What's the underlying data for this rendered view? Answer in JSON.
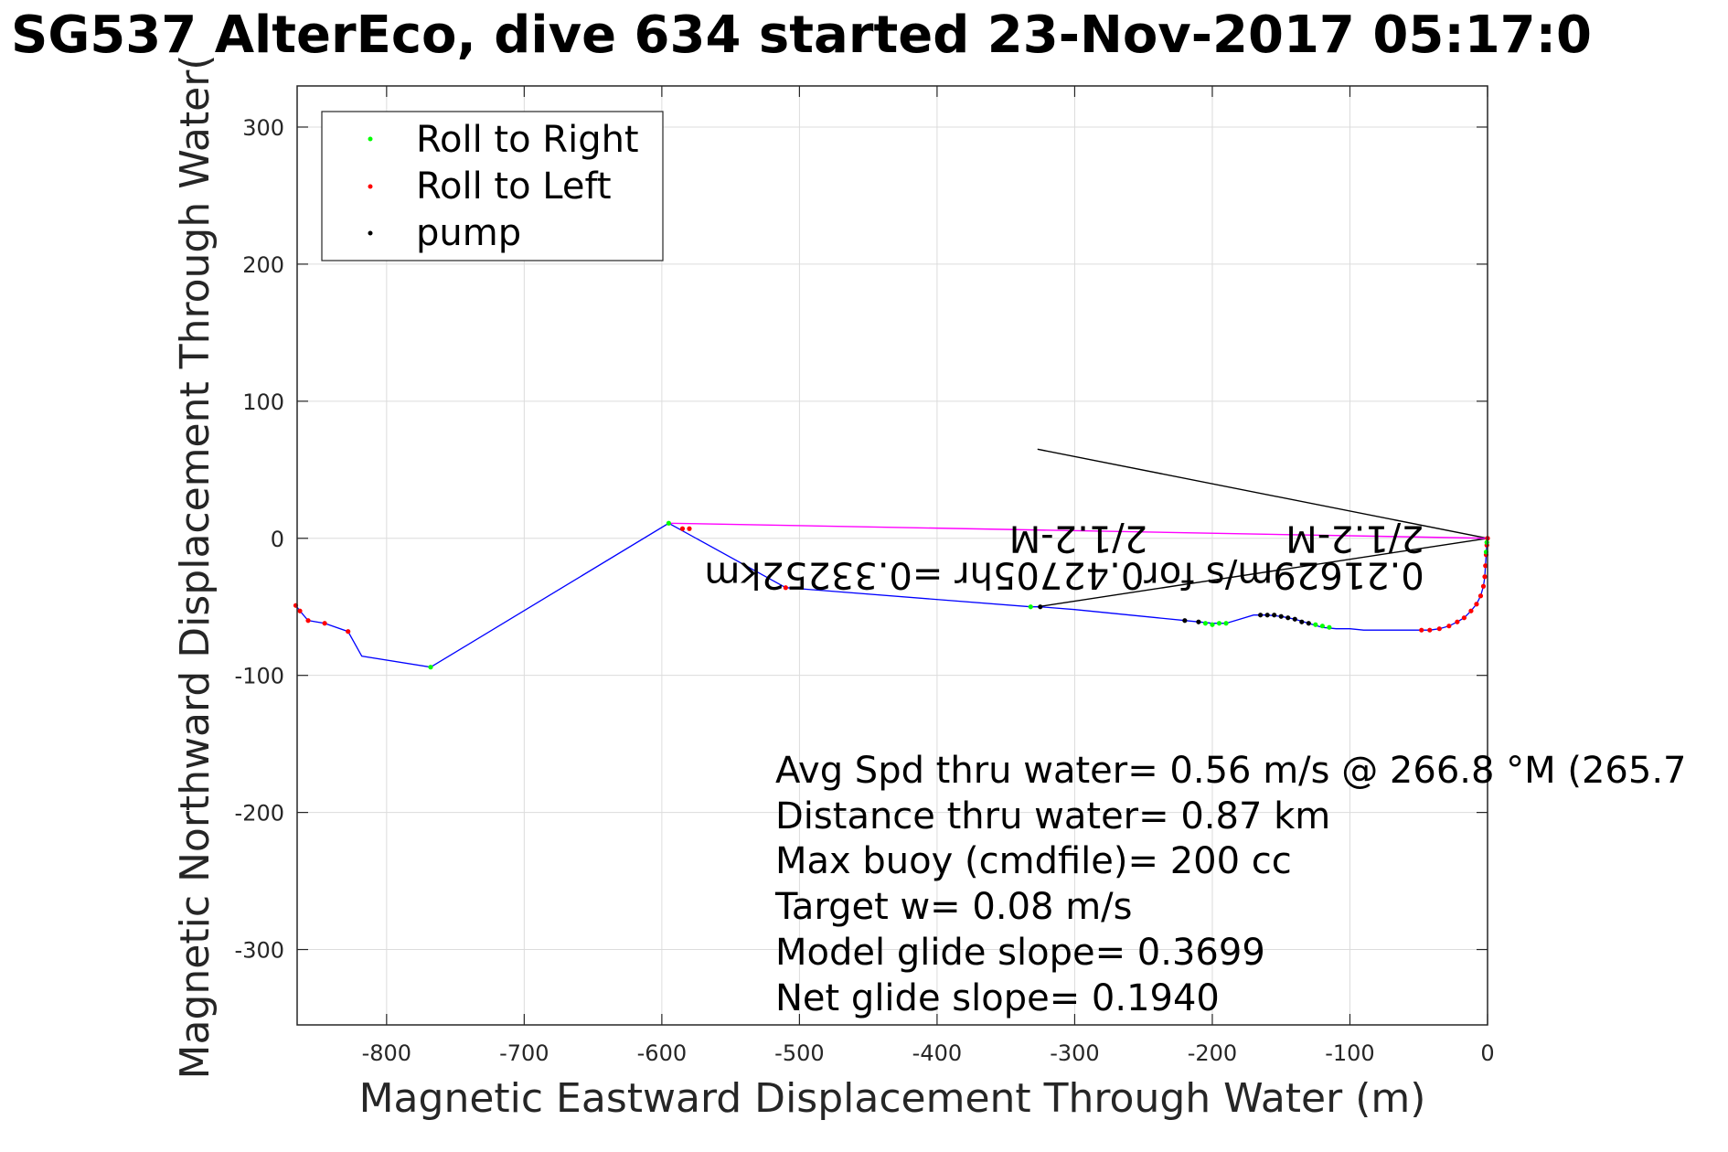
{
  "chart_data": {
    "type": "line",
    "title": "SG537 AlterEco, dive 634 started 23-Nov-2017 05:17:0",
    "xlabel": "Magnetic Eastward Displacement Through Water (m)",
    "ylabel": "Magnetic Northward Displacement Through Water(",
    "xlim": [
      -865,
      0
    ],
    "ylim": [
      -355,
      330
    ],
    "xticks": [
      -800,
      -700,
      -600,
      -500,
      -400,
      -300,
      -200,
      -100,
      0
    ],
    "xtick_labels": [
      "-800",
      "-700",
      "-600",
      "-500",
      "-400",
      "-300",
      "-200",
      "-100",
      "0"
    ],
    "yticks": [
      300,
      200,
      100,
      0,
      -100,
      -200,
      -300
    ],
    "ytick_labels": [
      "300",
      "200",
      "100",
      "0",
      "-100",
      "-200",
      "-300"
    ],
    "grid": true,
    "legend_position": "top-left",
    "legend": [
      {
        "label": "Roll to Right",
        "color": "#00ff00"
      },
      {
        "label": "Roll to Left",
        "color": "#ff0000"
      },
      {
        "label": "pump",
        "color": "#000000"
      }
    ],
    "track": {
      "color": "#0000ff",
      "points": [
        [
          0,
          0
        ],
        [
          -0.5,
          -5
        ],
        [
          -1,
          -12
        ],
        [
          -1.5,
          -20
        ],
        [
          -2,
          -28
        ],
        [
          -3,
          -35
        ],
        [
          -5,
          -42
        ],
        [
          -8,
          -48
        ],
        [
          -12,
          -53
        ],
        [
          -17,
          -58
        ],
        [
          -22,
          -61
        ],
        [
          -28,
          -64
        ],
        [
          -35,
          -66
        ],
        [
          -42,
          -67
        ],
        [
          -48,
          -67
        ],
        [
          -60,
          -67
        ],
        [
          -75,
          -67
        ],
        [
          -90,
          -67
        ],
        [
          -100,
          -66
        ],
        [
          -110,
          -66
        ],
        [
          -120,
          -65
        ],
        [
          -130,
          -62
        ],
        [
          -140,
          -59
        ],
        [
          -150,
          -57
        ],
        [
          -160,
          -56
        ],
        [
          -170,
          -56
        ],
        [
          -180,
          -59
        ],
        [
          -190,
          -62
        ],
        [
          -200,
          -62
        ],
        [
          -210,
          -61
        ],
        [
          -220,
          -60
        ],
        [
          -240,
          -58
        ],
        [
          -260,
          -56
        ],
        [
          -280,
          -54
        ],
        [
          -300,
          -52
        ],
        [
          -325,
          -50
        ],
        [
          -332,
          -50
        ],
        [
          -510,
          -36
        ],
        [
          -595,
          11
        ],
        [
          -768,
          -94
        ],
        [
          -818,
          -86
        ],
        [
          -828,
          -68
        ],
        [
          -845,
          -62
        ],
        [
          -857,
          -60
        ],
        [
          -863,
          -53
        ],
        [
          -866,
          -49
        ]
      ]
    },
    "roll_right_points": [
      [
        -0.5,
        -3
      ],
      [
        -1,
        -10
      ],
      [
        -195,
        -62
      ],
      [
        -200,
        -63
      ],
      [
        -205,
        -62
      ],
      [
        -190,
        -62
      ],
      [
        -120,
        -64
      ],
      [
        -125,
        -63
      ],
      [
        -115,
        -65
      ],
      [
        -332,
        -50
      ],
      [
        -595,
        11
      ],
      [
        -768,
        -94
      ]
    ],
    "roll_left_points": [
      [
        0,
        0
      ],
      [
        -0.5,
        -5
      ],
      [
        -1,
        -12
      ],
      [
        -1.5,
        -20
      ],
      [
        -2,
        -28
      ],
      [
        -3,
        -35
      ],
      [
        -5,
        -42
      ],
      [
        -8,
        -48
      ],
      [
        -12,
        -53
      ],
      [
        -17,
        -58
      ],
      [
        -22,
        -61
      ],
      [
        -28,
        -64
      ],
      [
        -35,
        -66
      ],
      [
        -42,
        -67
      ],
      [
        -48,
        -67
      ],
      [
        -510,
        -36
      ],
      [
        -580,
        7
      ],
      [
        -585,
        7
      ],
      [
        -828,
        -68
      ],
      [
        -845,
        -62
      ],
      [
        -857,
        -60
      ],
      [
        -863,
        -53
      ],
      [
        -866,
        -49
      ]
    ],
    "pump_points": [
      [
        -130,
        -62
      ],
      [
        -135,
        -61
      ],
      [
        -140,
        -59
      ],
      [
        -145,
        -58
      ],
      [
        -150,
        -57
      ],
      [
        -155,
        -56
      ],
      [
        -160,
        -56
      ],
      [
        -165,
        -56
      ],
      [
        -210,
        -61
      ],
      [
        -220,
        -60
      ],
      [
        -325,
        -50
      ]
    ],
    "heading_lines": [
      {
        "from": [
          0,
          0
        ],
        "to": [
          -327,
          65
        ],
        "color": "#000000"
      },
      {
        "from": [
          0,
          0
        ],
        "to": [
          -327,
          -50
        ],
        "color": "#000000"
      },
      {
        "from": [
          0,
          0
        ],
        "to": [
          -595,
          11
        ],
        "color": "#ff00ff"
      }
    ],
    "annotations": [
      {
        "text": "2/1.2-M",
        "x": -46,
        "y": 9
      },
      {
        "text": "0.21629m/s for0.42705hr =0.33252km",
        "x": -46,
        "y": -18
      },
      {
        "text": "2/1.2-M",
        "x": -247,
        "y": 9
      }
    ],
    "stats": [
      "Avg Spd thru water=  0.56 m/s @ 266.8 °M (265.7",
      "Distance thru water=  0.87 km",
      "Max buoy (cmdfile)= 200 cc",
      "Target w= 0.08 m/s",
      "Model glide slope= 0.3699",
      "Net glide slope= 0.1940"
    ]
  }
}
